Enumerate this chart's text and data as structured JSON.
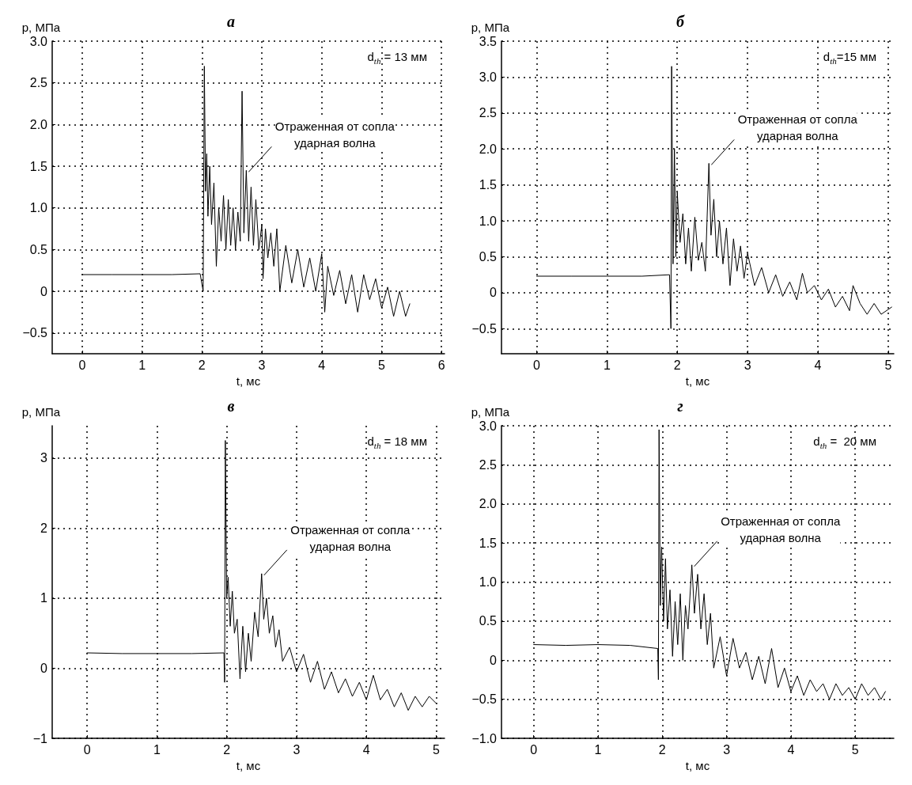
{
  "chart_data": [
    {
      "type": "line",
      "title": "а",
      "xlabel": "t, мс",
      "ylabel": "p, МПа",
      "color": "#000000",
      "marker": "none",
      "line_style": "solid",
      "grid": true,
      "xlim": [
        -0.5,
        6.05
      ],
      "xticks": [
        0,
        1,
        2,
        3,
        4,
        5,
        6
      ],
      "ylim": [
        -0.75,
        3.0
      ],
      "yticks": [
        {
          "value": -0.5,
          "label": "−0.5"
        },
        0,
        0.5,
        {
          "value": 1,
          "label": "1.0"
        },
        1.5,
        {
          "value": 2,
          "label": "2.0"
        },
        2.5,
        {
          "value": 3,
          "label": "3.0"
        }
      ],
      "annotations": [
        "d$_{th}$ = 13 мм",
        {
          "text": "Отраженная от сопла\nударная волна",
          "x": 2.74,
          "y": 1.45
        }
      ],
      "x": [
        0,
        0.5,
        1,
        1.5,
        1.97,
        2.02,
        2.04,
        2.06,
        2.08,
        2.1,
        2.13,
        2.16,
        2.2,
        2.24,
        2.28,
        2.32,
        2.36,
        2.4,
        2.44,
        2.48,
        2.52,
        2.56,
        2.6,
        2.64,
        2.67,
        2.7,
        2.74,
        2.78,
        2.82,
        2.86,
        2.9,
        2.95,
        3.0,
        3.02,
        3.06,
        3.1,
        3.15,
        3.2,
        3.25,
        3.3,
        3.4,
        3.5,
        3.6,
        3.7,
        3.8,
        3.9,
        4.0,
        4.05,
        4.1,
        4.2,
        4.3,
        4.4,
        4.5,
        4.6,
        4.7,
        4.8,
        4.9,
        5.0,
        5.1,
        5.2,
        5.3,
        5.4,
        5.47
      ],
      "values": [
        0.2,
        0.2,
        0.2,
        0.2,
        0.21,
        0.0,
        2.7,
        1.2,
        1.65,
        0.9,
        1.5,
        0.8,
        1.3,
        0.3,
        1.0,
        0.6,
        1.15,
        0.5,
        1.1,
        0.55,
        1.0,
        0.5,
        0.95,
        0.6,
        2.4,
        0.7,
        1.45,
        0.6,
        1.25,
        0.55,
        1.1,
        0.5,
        0.8,
        0.15,
        0.75,
        0.4,
        0.7,
        0.3,
        0.75,
        0.0,
        0.55,
        0.1,
        0.5,
        0.05,
        0.4,
        0.0,
        0.45,
        -0.25,
        0.3,
        -0.05,
        0.25,
        -0.15,
        0.2,
        -0.25,
        0.2,
        -0.1,
        0.15,
        -0.2,
        0.05,
        -0.3,
        0.0,
        -0.3,
        -0.15
      ]
    },
    {
      "type": "line",
      "title": "б",
      "xlabel": "t, мс",
      "ylabel": "p, МПа",
      "color": "#000000",
      "marker": "none",
      "line_style": "solid",
      "grid": true,
      "xlim": [
        -0.5,
        5.08
      ],
      "xticks": [
        0,
        1,
        2,
        3,
        4,
        5
      ],
      "ylim": [
        -0.85,
        3.5
      ],
      "yticks": [
        {
          "value": -0.5,
          "label": "−0.5"
        },
        0,
        0.5,
        {
          "value": 1,
          "label": "1.0"
        },
        1.5,
        {
          "value": 2,
          "label": "2.0"
        },
        2.5,
        {
          "value": 3,
          "label": "3.0"
        },
        3.5
      ],
      "annotations": [
        "d$_{th}$=15 мм",
        {
          "text": "Отраженная от сопла\nударная волна",
          "x": 2.45,
          "y": 1.8
        }
      ],
      "x": [
        0,
        0.5,
        1,
        1.5,
        1.89,
        1.91,
        1.92,
        1.94,
        1.96,
        1.98,
        2.0,
        2.04,
        2.08,
        2.12,
        2.16,
        2.2,
        2.25,
        2.3,
        2.35,
        2.4,
        2.45,
        2.48,
        2.52,
        2.56,
        2.6,
        2.65,
        2.7,
        2.75,
        2.8,
        2.85,
        2.9,
        2.95,
        3.0,
        3.1,
        3.2,
        3.3,
        3.4,
        3.5,
        3.6,
        3.7,
        3.78,
        3.85,
        3.95,
        4.05,
        4.15,
        4.25,
        4.35,
        4.45,
        4.5,
        4.6,
        4.7,
        4.8,
        4.9,
        5.05
      ],
      "values": [
        0.23,
        0.23,
        0.23,
        0.23,
        0.25,
        -0.5,
        3.15,
        0.4,
        2.0,
        0.5,
        1.4,
        0.7,
        1.1,
        0.4,
        0.9,
        0.3,
        1.05,
        0.45,
        0.7,
        0.3,
        1.8,
        0.8,
        1.3,
        0.5,
        1.0,
        0.4,
        0.9,
        0.1,
        0.75,
        0.3,
        0.65,
        0.2,
        0.55,
        0.1,
        0.35,
        0.0,
        0.25,
        -0.05,
        0.15,
        -0.1,
        0.27,
        0.0,
        0.1,
        -0.1,
        0.05,
        -0.2,
        -0.05,
        -0.25,
        0.1,
        -0.15,
        -0.3,
        -0.15,
        -0.3,
        -0.2
      ]
    },
    {
      "type": "line",
      "title": "в",
      "xlabel": "t, мс",
      "ylabel": "p, МПа",
      "color": "#000000",
      "marker": "none",
      "line_style": "solid",
      "grid": true,
      "xlim": [
        -0.5,
        5.12
      ],
      "xticks": [
        0,
        1,
        2,
        3,
        4,
        5
      ],
      "ylim": [
        -1,
        3.46
      ],
      "yticks": [
        {
          "value": -1,
          "label": "−1"
        },
        0,
        1,
        2,
        3
      ],
      "annotations": [
        "d$_{th}$ = 18 мм",
        {
          "text": "Отраженная от сопла\nударная волна",
          "x": 2.5,
          "y": 1.35
        }
      ],
      "x": [
        0,
        0.5,
        1,
        1.5,
        1.96,
        1.97,
        1.98,
        2.0,
        2.02,
        2.05,
        2.08,
        2.11,
        2.15,
        2.19,
        2.23,
        2.27,
        2.31,
        2.35,
        2.4,
        2.45,
        2.5,
        2.53,
        2.57,
        2.61,
        2.66,
        2.7,
        2.75,
        2.8,
        2.9,
        3.0,
        3.1,
        3.2,
        3.3,
        3.4,
        3.5,
        3.6,
        3.7,
        3.8,
        3.9,
        4.0,
        4.1,
        4.2,
        4.3,
        4.4,
        4.5,
        4.6,
        4.7,
        4.8,
        4.9,
        5.0
      ],
      "values": [
        0.22,
        0.21,
        0.21,
        0.21,
        0.22,
        -0.2,
        3.25,
        1.0,
        1.3,
        0.6,
        1.1,
        0.5,
        0.7,
        -0.15,
        0.6,
        -0.05,
        0.5,
        0.1,
        0.8,
        0.45,
        1.35,
        0.7,
        1.0,
        0.5,
        0.75,
        0.3,
        0.55,
        0.1,
        0.3,
        -0.05,
        0.2,
        -0.2,
        0.1,
        -0.3,
        -0.05,
        -0.35,
        -0.15,
        -0.4,
        -0.2,
        -0.45,
        -0.1,
        -0.45,
        -0.3,
        -0.55,
        -0.35,
        -0.6,
        -0.4,
        -0.55,
        -0.4,
        -0.5
      ]
    },
    {
      "type": "line",
      "title": "г",
      "xlabel": "t, мс",
      "ylabel": "p, МПа",
      "color": "#000000",
      "marker": "none",
      "line_style": "solid",
      "grid": true,
      "xlim": [
        -0.5,
        5.6
      ],
      "xticks": [
        0,
        1,
        2,
        3,
        4,
        5
      ],
      "ylim": [
        -1,
        3.0
      ],
      "yticks": [
        {
          "value": -1,
          "label": "−1.0"
        },
        {
          "value": -0.5,
          "label": "−0.5"
        },
        0,
        0.5,
        {
          "value": 1,
          "label": "1.0"
        },
        1.5,
        {
          "value": 2,
          "label": "2.0"
        },
        2.5,
        {
          "value": 3,
          "label": "3.0"
        }
      ],
      "annotations": [
        "d$_{th}$ =  20 мм",
        {
          "text": "Отраженная от сопла\nударная волна",
          "x": 2.46,
          "y": 1.22
        }
      ],
      "x": [
        0,
        0.5,
        1,
        1.5,
        1.93,
        1.94,
        1.95,
        1.97,
        1.99,
        2.02,
        2.05,
        2.08,
        2.12,
        2.16,
        2.2,
        2.24,
        2.28,
        2.32,
        2.36,
        2.4,
        2.46,
        2.5,
        2.55,
        2.6,
        2.65,
        2.7,
        2.75,
        2.8,
        2.9,
        3.0,
        3.1,
        3.2,
        3.3,
        3.4,
        3.5,
        3.6,
        3.7,
        3.8,
        3.9,
        4.0,
        4.1,
        4.2,
        4.3,
        4.4,
        4.5,
        4.6,
        4.7,
        4.8,
        4.9,
        5.0,
        5.1,
        5.2,
        5.3,
        5.4,
        5.47
      ],
      "values": [
        0.2,
        0.19,
        0.2,
        0.19,
        0.15,
        -0.25,
        2.95,
        0.7,
        1.45,
        0.5,
        1.3,
        0.4,
        0.9,
        0.05,
        0.75,
        0.2,
        0.85,
        0.0,
        0.7,
        0.4,
        1.22,
        0.6,
        1.1,
        0.4,
        0.85,
        0.2,
        0.6,
        -0.1,
        0.3,
        -0.2,
        0.28,
        -0.1,
        0.1,
        -0.25,
        0.05,
        -0.3,
        0.15,
        -0.35,
        -0.1,
        -0.4,
        -0.2,
        -0.45,
        -0.25,
        -0.4,
        -0.3,
        -0.5,
        -0.3,
        -0.45,
        -0.35,
        -0.5,
        -0.3,
        -0.45,
        -0.35,
        -0.5,
        -0.4
      ]
    }
  ]
}
